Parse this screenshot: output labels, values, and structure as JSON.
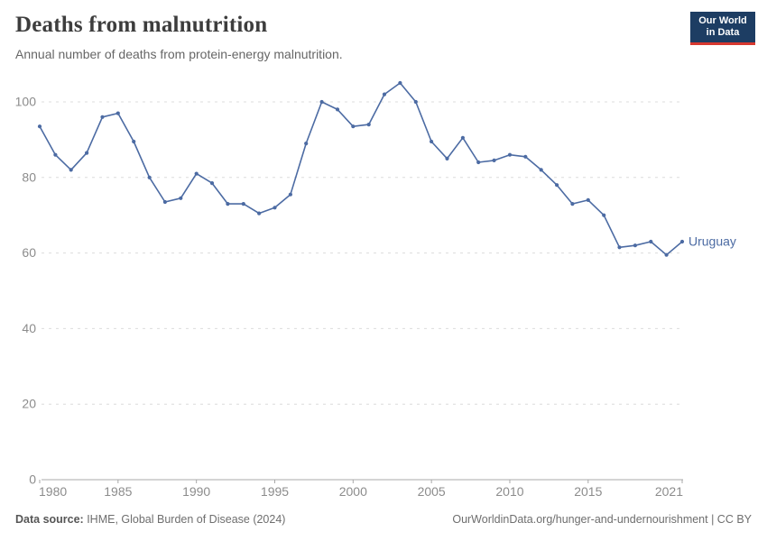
{
  "header": {
    "title": "Deaths from malnutrition",
    "subtitle": "Annual number of deaths from protein-energy malnutrition."
  },
  "logo": {
    "line1": "Our World",
    "line2": "in Data",
    "bg_color": "#1d3d63",
    "accent_color": "#d7382f"
  },
  "chart_data": {
    "type": "line",
    "title": "Deaths from malnutrition",
    "subtitle": "Annual number of deaths from protein-energy malnutrition.",
    "xlabel": "",
    "ylabel": "",
    "xlim": [
      1980,
      2021
    ],
    "ylim": [
      0,
      100
    ],
    "grid": "dashed-horizontal",
    "x_ticks": [
      1980,
      1985,
      1990,
      1995,
      2000,
      2005,
      2010,
      2015,
      2021
    ],
    "y_ticks": [
      0,
      20,
      40,
      60,
      80,
      100
    ],
    "series": [
      {
        "name": "Uruguay",
        "color": "#4c6ba3",
        "x": [
          1980,
          1981,
          1982,
          1983,
          1984,
          1985,
          1986,
          1987,
          1988,
          1989,
          1990,
          1991,
          1992,
          1993,
          1994,
          1995,
          1996,
          1997,
          1998,
          1999,
          2000,
          2001,
          2002,
          2003,
          2004,
          2005,
          2006,
          2007,
          2008,
          2009,
          2010,
          2011,
          2012,
          2013,
          2014,
          2015,
          2016,
          2017,
          2018,
          2019,
          2020,
          2021
        ],
        "values": [
          93.5,
          86,
          82,
          86.5,
          96,
          97,
          89.5,
          80,
          73.5,
          74.5,
          81,
          78.5,
          73,
          73,
          70.5,
          72,
          75.5,
          89,
          100,
          98,
          93.5,
          94,
          102,
          105,
          100,
          89.5,
          85,
          90.5,
          84,
          84.5,
          86,
          85.5,
          82,
          78,
          73,
          74,
          70,
          61.5,
          62,
          63,
          59.5,
          63
        ]
      }
    ],
    "entity_label": "Uruguay",
    "legend_position": "end-of-line",
    "colors": {
      "gridline": "#dcdcdc",
      "axis": "#a8a8a8",
      "tick_label": "#8c8c8c"
    }
  },
  "footer": {
    "source_label": "Data source:",
    "source_text": " IHME, Global Burden of Disease (2024)",
    "right_text": "OurWorldinData.org/hunger-and-undernourishment | CC BY"
  }
}
